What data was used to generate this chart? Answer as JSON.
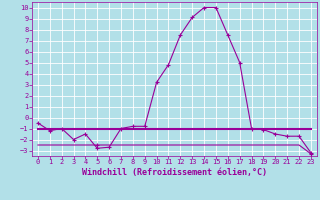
{
  "x": [
    0,
    1,
    2,
    3,
    4,
    5,
    6,
    7,
    8,
    9,
    10,
    11,
    12,
    13,
    14,
    15,
    16,
    17,
    18,
    19,
    20,
    21,
    22,
    23
  ],
  "line1_y": [
    -0.5,
    -1.2,
    -1.0,
    -2.0,
    -1.5,
    -2.8,
    -2.7,
    -1.0,
    -0.8,
    -0.8,
    3.2,
    4.8,
    7.5,
    9.1,
    10.0,
    10.0,
    7.5,
    5.0,
    -1.0,
    -1.1,
    -1.5,
    -1.7,
    -1.7,
    -3.2
  ],
  "line2_y": [
    -1.0,
    -1.0,
    -1.0,
    -1.0,
    -1.0,
    -1.0,
    -1.0,
    -1.0,
    -1.0,
    -1.0,
    -1.0,
    -1.0,
    -1.0,
    -1.0,
    -1.0,
    -1.0,
    -1.0,
    -1.0,
    -1.0,
    -1.0,
    -1.0,
    -1.0,
    -1.0,
    -1.0
  ],
  "line3_y": [
    -2.5,
    -2.5,
    -2.5,
    -2.5,
    -2.5,
    -2.5,
    -2.5,
    -2.5,
    -2.5,
    -2.5,
    -2.5,
    -2.5,
    -2.5,
    -2.5,
    -2.5,
    -2.5,
    -2.5,
    -2.5,
    -2.5,
    -2.5,
    -2.5,
    -2.5,
    -2.5,
    -3.3
  ],
  "line_color": "#990099",
  "bg_color": "#b2e0e8",
  "grid_color": "#ffffff",
  "xlabel": "Windchill (Refroidissement éolien,°C)",
  "ylim": [
    -3.5,
    10.5
  ],
  "xlim": [
    -0.5,
    23.5
  ],
  "yticks": [
    -3,
    -2,
    -1,
    0,
    1,
    2,
    3,
    4,
    5,
    6,
    7,
    8,
    9,
    10
  ],
  "xticks": [
    0,
    1,
    2,
    3,
    4,
    5,
    6,
    7,
    8,
    9,
    10,
    11,
    12,
    13,
    14,
    15,
    16,
    17,
    18,
    19,
    20,
    21,
    22,
    23
  ],
  "tick_fontsize": 5.0,
  "xlabel_fontsize": 6.0,
  "linewidth_main": 0.8,
  "linewidth_flat": 1.5,
  "marker_size": 3.0
}
